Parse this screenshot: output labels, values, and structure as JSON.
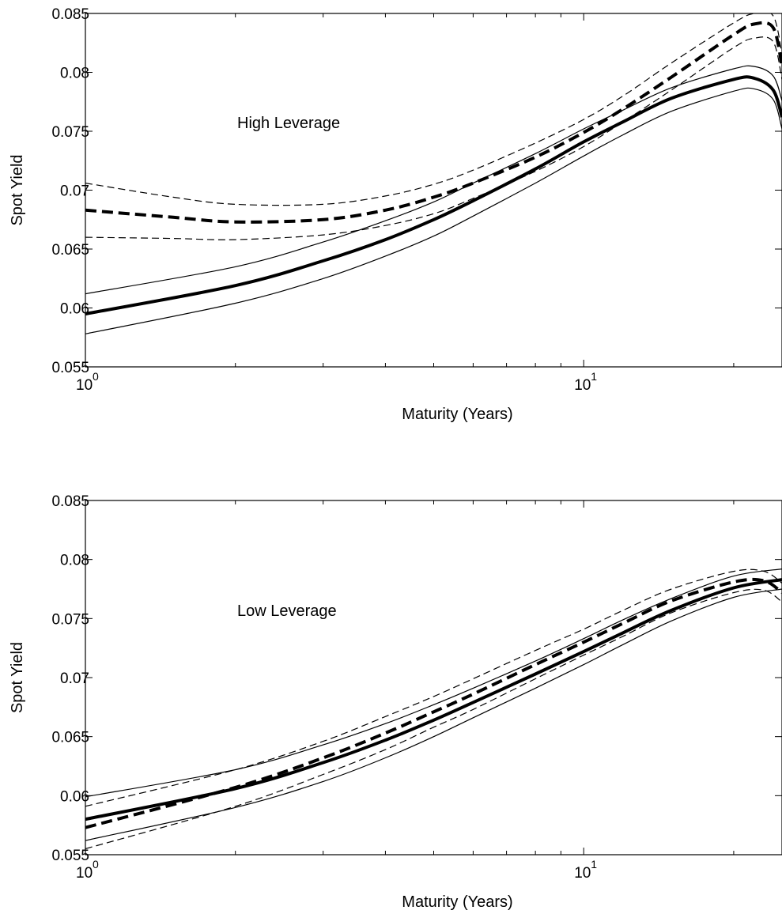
{
  "chart_data": [
    {
      "type": "line",
      "annotation": "High Leverage",
      "xlabel": "Maturity (Years)",
      "ylabel": "Spot Yield",
      "xscale": "log",
      "xlim": [
        1,
        25
      ],
      "ylim": [
        0.055,
        0.085
      ],
      "x_ticks": [
        1,
        10
      ],
      "x_tick_labels": [
        {
          "base": "10",
          "exp": "0"
        },
        {
          "base": "10",
          "exp": "1"
        }
      ],
      "y_ticks": [
        0.055,
        0.06,
        0.065,
        0.07,
        0.075,
        0.08,
        0.085
      ],
      "y_tick_labels": [
        "0.055",
        "0.06",
        "0.065",
        "0.07",
        "0.075",
        "0.08",
        "0.085"
      ],
      "grid": false,
      "legend": false,
      "series": [
        {
          "style": "solid-thick",
          "x": [
            1,
            2,
            3,
            4,
            5,
            6,
            8,
            10,
            12,
            15,
            20,
            22,
            24,
            25
          ],
          "y": [
            0.0595,
            0.0619,
            0.064,
            0.0658,
            0.0675,
            0.0691,
            0.0718,
            0.0741,
            0.0758,
            0.0778,
            0.0794,
            0.0795,
            0.0785,
            0.0762
          ]
        },
        {
          "style": "solid-thin",
          "x": [
            1,
            2,
            3,
            4,
            5,
            6,
            8,
            10,
            12,
            15,
            20,
            22,
            24,
            25
          ],
          "y": [
            0.0612,
            0.0635,
            0.0656,
            0.0674,
            0.069,
            0.0706,
            0.0731,
            0.0752,
            0.0768,
            0.0787,
            0.0803,
            0.0805,
            0.0797,
            0.0776
          ]
        },
        {
          "style": "solid-thin",
          "x": [
            1,
            2,
            3,
            4,
            5,
            6,
            8,
            10,
            12,
            15,
            20,
            22,
            24,
            25
          ],
          "y": [
            0.0578,
            0.0604,
            0.0625,
            0.0644,
            0.0661,
            0.0678,
            0.0706,
            0.0729,
            0.0747,
            0.0767,
            0.0784,
            0.0786,
            0.0777,
            0.0752
          ]
        },
        {
          "style": "dashed-thick",
          "x": [
            1,
            1.5,
            2,
            3,
            4,
            5,
            6,
            8,
            10,
            12,
            15,
            20,
            22,
            24,
            25
          ],
          "y": [
            0.0683,
            0.0677,
            0.0673,
            0.0675,
            0.0683,
            0.0694,
            0.0706,
            0.0728,
            0.0749,
            0.0769,
            0.0796,
            0.0832,
            0.0841,
            0.0838,
            0.0805
          ]
        },
        {
          "style": "dashed-thin",
          "x": [
            1,
            1.5,
            2,
            3,
            4,
            5,
            6,
            8,
            10,
            12,
            15,
            20,
            22,
            24,
            25
          ],
          "y": [
            0.0706,
            0.0694,
            0.0688,
            0.0688,
            0.0695,
            0.0705,
            0.0717,
            0.074,
            0.076,
            0.078,
            0.0808,
            0.0842,
            0.085,
            0.0848,
            0.0815
          ]
        },
        {
          "style": "dashed-thin",
          "x": [
            1,
            1.5,
            2,
            3,
            4,
            5,
            6,
            8,
            10,
            12,
            15,
            20,
            22,
            24,
            25
          ],
          "y": [
            0.066,
            0.0659,
            0.0658,
            0.0662,
            0.067,
            0.068,
            0.0693,
            0.0716,
            0.0737,
            0.0758,
            0.0785,
            0.0821,
            0.0829,
            0.0826,
            0.0794
          ]
        }
      ]
    },
    {
      "type": "line",
      "annotation": "Low Leverage",
      "xlabel": "Maturity (Years)",
      "ylabel": "Spot Yield",
      "xscale": "log",
      "xlim": [
        1,
        25
      ],
      "ylim": [
        0.055,
        0.085
      ],
      "x_ticks": [
        1,
        10
      ],
      "x_tick_labels": [
        {
          "base": "10",
          "exp": "0"
        },
        {
          "base": "10",
          "exp": "1"
        }
      ],
      "y_ticks": [
        0.055,
        0.06,
        0.065,
        0.07,
        0.075,
        0.08,
        0.085
      ],
      "y_tick_labels": [
        "0.055",
        "0.06",
        "0.065",
        "0.07",
        "0.075",
        "0.08",
        "0.085"
      ],
      "grid": false,
      "legend": false,
      "series": [
        {
          "style": "solid-thick",
          "x": [
            1,
            2,
            3,
            4,
            5,
            6,
            8,
            10,
            12,
            15,
            20,
            25
          ],
          "y": [
            0.058,
            0.0606,
            0.0628,
            0.0647,
            0.0664,
            0.0679,
            0.0703,
            0.0722,
            0.0738,
            0.0757,
            0.0776,
            0.0783
          ]
        },
        {
          "style": "solid-thin",
          "x": [
            1,
            2,
            3,
            4,
            5,
            6,
            8,
            10,
            12,
            15,
            20,
            25
          ],
          "y": [
            0.0599,
            0.0622,
            0.0643,
            0.0661,
            0.0677,
            0.0691,
            0.0714,
            0.0733,
            0.0749,
            0.0767,
            0.0786,
            0.0792
          ]
        },
        {
          "style": "solid-thin",
          "x": [
            1,
            2,
            3,
            4,
            5,
            6,
            8,
            10,
            12,
            15,
            20,
            25
          ],
          "y": [
            0.0562,
            0.059,
            0.0612,
            0.0632,
            0.065,
            0.0666,
            0.0691,
            0.0711,
            0.0728,
            0.0748,
            0.0768,
            0.0775
          ]
        },
        {
          "style": "dashed-thick",
          "x": [
            1,
            2,
            3,
            4,
            5,
            6,
            8,
            10,
            12,
            15,
            20,
            23,
            25
          ],
          "y": [
            0.0573,
            0.0607,
            0.0632,
            0.0653,
            0.0671,
            0.0686,
            0.0711,
            0.073,
            0.0746,
            0.0765,
            0.0781,
            0.0782,
            0.0772
          ]
        },
        {
          "style": "dashed-thin",
          "x": [
            1,
            2,
            3,
            4,
            5,
            6,
            8,
            10,
            12,
            15,
            20,
            23,
            25
          ],
          "y": [
            0.0591,
            0.0622,
            0.0646,
            0.0667,
            0.0684,
            0.0699,
            0.0723,
            0.0741,
            0.0757,
            0.0775,
            0.079,
            0.079,
            0.078
          ]
        },
        {
          "style": "dashed-thin",
          "x": [
            1,
            2,
            3,
            4,
            5,
            6,
            8,
            10,
            12,
            15,
            20,
            23,
            25
          ],
          "y": [
            0.0555,
            0.0591,
            0.0618,
            0.0639,
            0.0658,
            0.0673,
            0.0699,
            0.0719,
            0.0735,
            0.0755,
            0.0772,
            0.0774,
            0.0764
          ]
        }
      ]
    }
  ]
}
